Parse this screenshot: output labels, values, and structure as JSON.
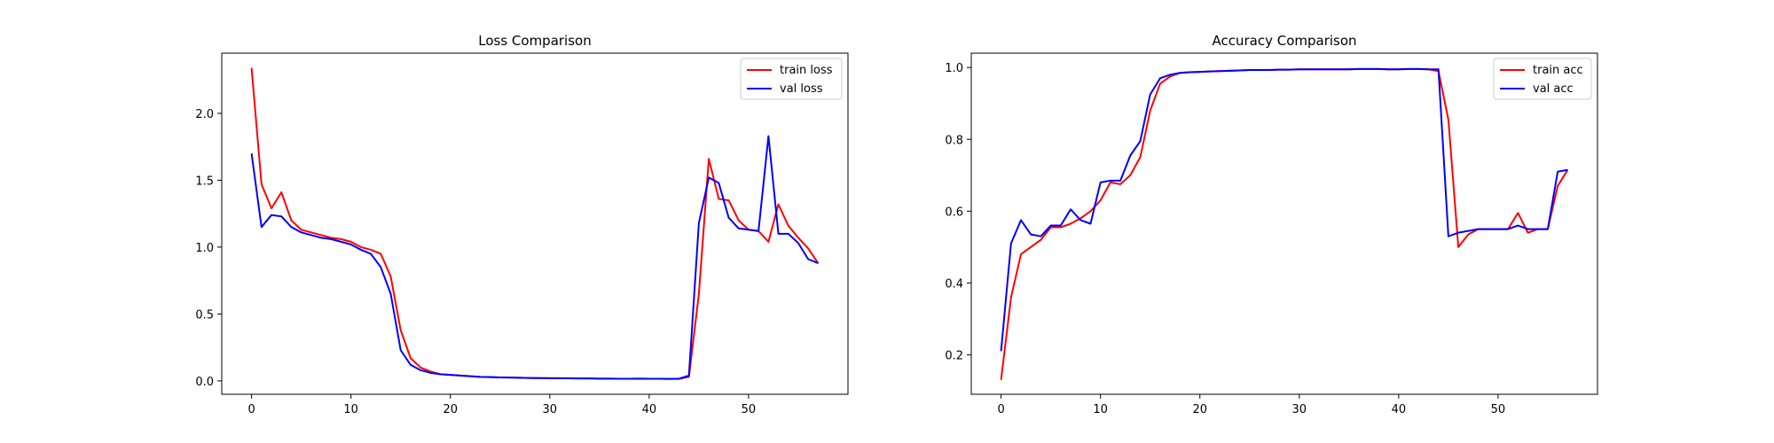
{
  "chart_data": [
    {
      "type": "line",
      "title": "Loss Comparison",
      "xlabel": "",
      "ylabel": "",
      "xlim": [
        -3,
        60
      ],
      "ylim": [
        -0.1,
        2.45
      ],
      "xticks": [
        0,
        10,
        20,
        30,
        40,
        50
      ],
      "yticks": [
        0.0,
        0.5,
        1.0,
        1.5,
        2.0
      ],
      "ytick_labels": [
        "0.0",
        "0.5",
        "1.0",
        "1.5",
        "2.0"
      ],
      "grid": false,
      "legend_position": "top-right",
      "x": [
        0,
        1,
        2,
        3,
        4,
        5,
        6,
        7,
        8,
        9,
        10,
        11,
        12,
        13,
        14,
        15,
        16,
        17,
        18,
        19,
        20,
        21,
        22,
        23,
        24,
        25,
        26,
        27,
        28,
        29,
        30,
        31,
        32,
        33,
        34,
        35,
        36,
        37,
        38,
        39,
        40,
        41,
        42,
        43,
        44,
        45,
        46,
        47,
        48,
        49,
        50,
        51,
        52,
        53,
        54,
        55,
        56,
        57
      ],
      "series": [
        {
          "name": "train loss",
          "color": "#ff0000",
          "values": [
            2.34,
            1.47,
            1.29,
            1.41,
            1.2,
            1.13,
            1.11,
            1.09,
            1.07,
            1.06,
            1.04,
            1.0,
            0.98,
            0.95,
            0.78,
            0.38,
            0.17,
            0.1,
            0.07,
            0.05,
            0.045,
            0.04,
            0.035,
            0.03,
            0.028,
            0.026,
            0.025,
            0.023,
            0.022,
            0.021,
            0.02,
            0.02,
            0.019,
            0.018,
            0.018,
            0.017,
            0.017,
            0.016,
            0.016,
            0.017,
            0.016,
            0.016,
            0.015,
            0.015,
            0.03,
            0.65,
            1.66,
            1.36,
            1.35,
            1.2,
            1.13,
            1.12,
            1.04,
            1.32,
            1.16,
            1.07,
            0.99,
            0.88
          ]
        },
        {
          "name": "val loss",
          "color": "#0000ff",
          "values": [
            1.7,
            1.15,
            1.24,
            1.23,
            1.15,
            1.11,
            1.09,
            1.07,
            1.06,
            1.04,
            1.02,
            0.98,
            0.95,
            0.85,
            0.65,
            0.23,
            0.12,
            0.08,
            0.06,
            0.05,
            0.045,
            0.04,
            0.035,
            0.03,
            0.028,
            0.026,
            0.025,
            0.023,
            0.022,
            0.021,
            0.02,
            0.02,
            0.019,
            0.018,
            0.018,
            0.017,
            0.017,
            0.016,
            0.016,
            0.017,
            0.016,
            0.016,
            0.015,
            0.016,
            0.04,
            1.18,
            1.52,
            1.48,
            1.22,
            1.14,
            1.13,
            1.12,
            1.83,
            1.1,
            1.1,
            1.03,
            0.91,
            0.88
          ]
        }
      ]
    },
    {
      "type": "line",
      "title": "Accuracy Comparison",
      "xlabel": "",
      "ylabel": "",
      "xlim": [
        -3,
        60
      ],
      "ylim": [
        0.09,
        1.04
      ],
      "xticks": [
        0,
        10,
        20,
        30,
        40,
        50
      ],
      "yticks": [
        0.2,
        0.4,
        0.6,
        0.8,
        1.0
      ],
      "ytick_labels": [
        "0.2",
        "0.4",
        "0.6",
        "0.8",
        "1.0"
      ],
      "grid": false,
      "legend_position": "top-right",
      "x": [
        0,
        1,
        2,
        3,
        4,
        5,
        6,
        7,
        8,
        9,
        10,
        11,
        12,
        13,
        14,
        15,
        16,
        17,
        18,
        19,
        20,
        21,
        22,
        23,
        24,
        25,
        26,
        27,
        28,
        29,
        30,
        31,
        32,
        33,
        34,
        35,
        36,
        37,
        38,
        39,
        40,
        41,
        42,
        43,
        44,
        45,
        46,
        47,
        48,
        49,
        50,
        51,
        52,
        53,
        54,
        55,
        56,
        57
      ],
      "series": [
        {
          "name": "train acc",
          "color": "#ff0000",
          "values": [
            0.13,
            0.36,
            0.48,
            0.5,
            0.52,
            0.555,
            0.555,
            0.565,
            0.58,
            0.6,
            0.63,
            0.68,
            0.675,
            0.7,
            0.75,
            0.88,
            0.955,
            0.975,
            0.985,
            0.987,
            0.988,
            0.989,
            0.99,
            0.991,
            0.992,
            0.993,
            0.993,
            0.993,
            0.994,
            0.994,
            0.995,
            0.995,
            0.995,
            0.995,
            0.995,
            0.995,
            0.996,
            0.996,
            0.996,
            0.995,
            0.995,
            0.996,
            0.996,
            0.995,
            0.99,
            0.855,
            0.5,
            0.535,
            0.55,
            0.55,
            0.55,
            0.55,
            0.595,
            0.54,
            0.55,
            0.55,
            0.67,
            0.715
          ]
        },
        {
          "name": "val acc",
          "color": "#0000ff",
          "values": [
            0.21,
            0.51,
            0.575,
            0.535,
            0.53,
            0.56,
            0.56,
            0.605,
            0.575,
            0.565,
            0.68,
            0.685,
            0.685,
            0.755,
            0.795,
            0.925,
            0.97,
            0.98,
            0.985,
            0.987,
            0.988,
            0.989,
            0.99,
            0.991,
            0.992,
            0.993,
            0.993,
            0.993,
            0.994,
            0.994,
            0.995,
            0.995,
            0.995,
            0.995,
            0.995,
            0.995,
            0.996,
            0.996,
            0.996,
            0.995,
            0.995,
            0.996,
            0.996,
            0.995,
            0.995,
            0.53,
            0.54,
            0.545,
            0.55,
            0.55,
            0.55,
            0.55,
            0.56,
            0.55,
            0.55,
            0.55,
            0.71,
            0.715
          ]
        }
      ]
    }
  ]
}
